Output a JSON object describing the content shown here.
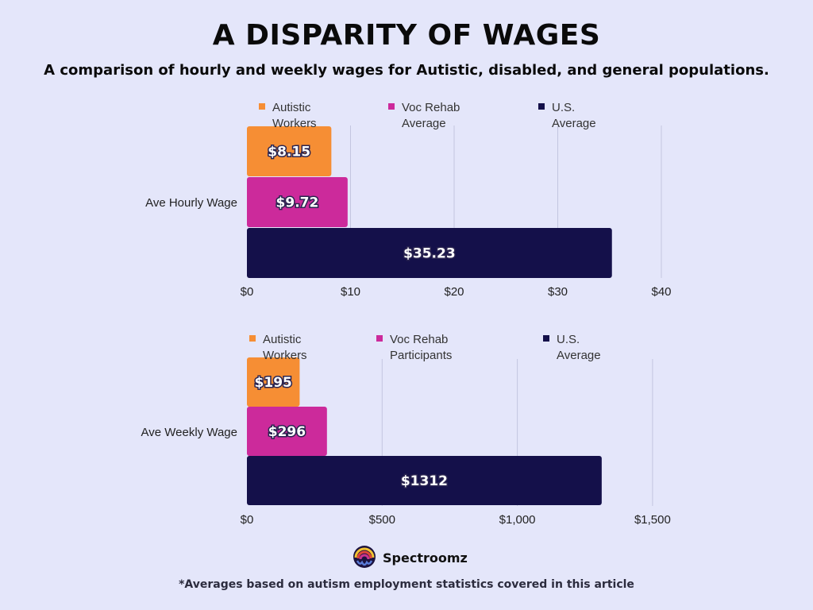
{
  "title": "A DISPARITY OF WAGES",
  "subtitle": "A comparison of hourly and weekly wages for Autistic, disabled, and general populations.",
  "brand": {
    "name": "Spectroomz",
    "logo_icon": "spectroomz-logo-icon"
  },
  "footnote": "*Averages based on autism employment statistics covered in this article",
  "colors": {
    "orange": "#f68e34",
    "magenta": "#cc2a9b",
    "navy": "#14104a",
    "background": "#e4e6fa"
  },
  "chart_data": [
    {
      "type": "bar",
      "orientation": "horizontal",
      "categories": [
        "Ave Hourly Wage"
      ],
      "series": [
        {
          "name": "Autistic Workers",
          "values": [
            8.15
          ],
          "label": "$8.15",
          "color": "#f68e34"
        },
        {
          "name": "Voc Rehab Average",
          "values": [
            9.72
          ],
          "label": "$9.72",
          "color": "#cc2a9b"
        },
        {
          "name": "U.S. Average",
          "values": [
            35.23
          ],
          "label": "$35.23",
          "color": "#14104a"
        }
      ],
      "xlim": [
        0,
        40
      ],
      "ticks": [
        0,
        10,
        20,
        30,
        40
      ],
      "tick_labels": [
        "$0",
        "$10",
        "$20",
        "$30",
        "$40"
      ],
      "legend": "top",
      "grid": true
    },
    {
      "type": "bar",
      "orientation": "horizontal",
      "categories": [
        "Ave Weekly Wage"
      ],
      "series": [
        {
          "name": "Autistic Workers",
          "values": [
            195
          ],
          "label": "$195",
          "color": "#f68e34"
        },
        {
          "name": "Voc Rehab Participants",
          "values": [
            296
          ],
          "label": "$296",
          "color": "#cc2a9b"
        },
        {
          "name": "U.S. Average",
          "values": [
            1312
          ],
          "label": "$1312",
          "color": "#14104a"
        }
      ],
      "xlim": [
        0,
        1500
      ],
      "ticks": [
        0,
        500,
        1000,
        1500
      ],
      "tick_labels": [
        "$0",
        "$500",
        "$1,000",
        "$1,500"
      ],
      "legend": "top",
      "grid": true
    }
  ]
}
